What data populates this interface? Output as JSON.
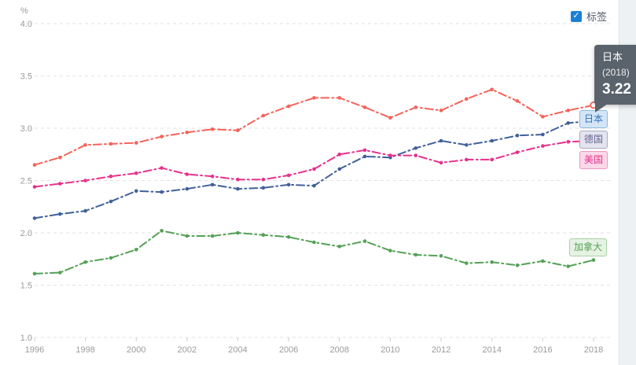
{
  "legend_toggle": {
    "label": "标签",
    "checked": true,
    "checkbox_color": "#1b7fd6",
    "check_glyph": "✓"
  },
  "tooltip": {
    "series": "日本",
    "year": "(2018)",
    "value": "3.22",
    "bg": "#5a626b"
  },
  "end_labels": [
    {
      "text": "日本",
      "bg": "#d3e5f6",
      "border": "#8fb8e0",
      "color": "#3273b8"
    },
    {
      "text": "德国",
      "bg": "#e4e4ef",
      "border": "#a9a9c7",
      "color": "#636395"
    },
    {
      "text": "美国",
      "bg": "#fbd8e9",
      "border": "#ef94c2",
      "color": "#e7308c"
    },
    {
      "text": "加拿大",
      "bg": "#e6f2e3",
      "border": "#a8d2a3",
      "color": "#55a156"
    }
  ],
  "chart_data": {
    "type": "line",
    "title": "",
    "xlabel": "",
    "ylabel": "",
    "unit": "%",
    "ylim": [
      1.0,
      4.0
    ],
    "grid": "dashed-horizontal",
    "legend_position": "line-end-labels",
    "line_style": "dash-dot with point markers",
    "x": [
      1996,
      1997,
      1998,
      1999,
      2000,
      2001,
      2002,
      2003,
      2004,
      2005,
      2006,
      2007,
      2008,
      2009,
      2010,
      2011,
      2012,
      2013,
      2014,
      2015,
      2016,
      2017,
      2018
    ],
    "x_tick_labels": [
      "1996",
      "1998",
      "2000",
      "2002",
      "2004",
      "2006",
      "2008",
      "2010",
      "2012",
      "2014",
      "2016",
      "2018"
    ],
    "y_ticks": [
      "4.0",
      "3.5",
      "3.0",
      "2.5",
      "2.0",
      "1.5",
      "1.0"
    ],
    "hovered_point": {
      "series": "日本",
      "x": 2018,
      "value": 3.22
    },
    "series": [
      {
        "name": "日本",
        "key": "japan",
        "color": "#f4635a",
        "values": [
          2.65,
          2.72,
          2.84,
          2.85,
          2.86,
          2.92,
          2.96,
          2.99,
          2.98,
          3.12,
          3.21,
          3.29,
          3.29,
          3.2,
          3.1,
          3.2,
          3.17,
          3.28,
          3.37,
          3.26,
          3.11,
          3.17,
          3.22
        ]
      },
      {
        "name": "德国",
        "key": "germany",
        "color": "#41609b",
        "values": [
          2.14,
          2.18,
          2.21,
          2.3,
          2.4,
          2.39,
          2.42,
          2.46,
          2.42,
          2.43,
          2.46,
          2.45,
          2.61,
          2.73,
          2.72,
          2.81,
          2.88,
          2.84,
          2.88,
          2.93,
          2.94,
          3.05,
          3.07
        ]
      },
      {
        "name": "美国",
        "key": "usa",
        "color": "#e7308c",
        "values": [
          2.44,
          2.47,
          2.5,
          2.54,
          2.57,
          2.62,
          2.56,
          2.54,
          2.51,
          2.51,
          2.55,
          2.61,
          2.75,
          2.79,
          2.74,
          2.74,
          2.67,
          2.7,
          2.7,
          2.77,
          2.83,
          2.87,
          2.88
        ]
      },
      {
        "name": "加拿大",
        "key": "canada",
        "color": "#55a156",
        "values": [
          1.61,
          1.62,
          1.72,
          1.76,
          1.84,
          2.02,
          1.97,
          1.97,
          2.0,
          1.98,
          1.96,
          1.91,
          1.87,
          1.92,
          1.83,
          1.79,
          1.78,
          1.71,
          1.72,
          1.69,
          1.73,
          1.68,
          1.74
        ]
      }
    ]
  }
}
